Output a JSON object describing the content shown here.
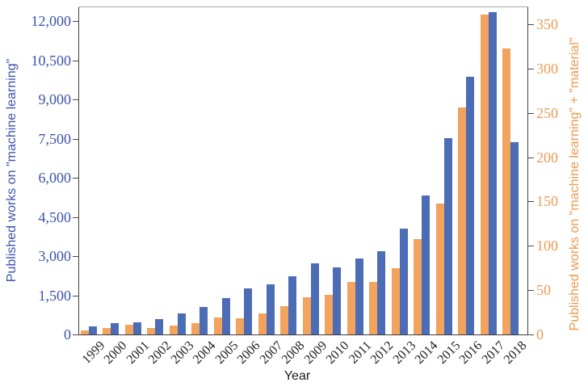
{
  "chart_data": {
    "type": "bar",
    "title": "",
    "xlabel": "Year",
    "grid": false,
    "legend_position": "none",
    "categories": [
      "1999",
      "2000",
      "2001",
      "2002",
      "2003",
      "2004",
      "2005",
      "2006",
      "2007",
      "2008",
      "2009",
      "2010",
      "2011",
      "2012",
      "2013",
      "2014",
      "2015",
      "2016",
      "2017",
      "2018"
    ],
    "series": [
      {
        "name": "Published works on \"machine learning\" + \"material\"",
        "axis": "right",
        "bar_position": "left-in-pair",
        "color": "#f2a35e",
        "values": [
          5,
          7,
          11,
          7,
          10,
          13,
          19,
          18,
          24,
          32,
          42,
          45,
          59,
          59,
          75,
          108,
          148,
          256,
          361,
          323
        ]
      },
      {
        "name": "Published works on \"machine learning\"",
        "axis": "left",
        "bar_position": "right-in-pair",
        "color": "#4c6cb5",
        "values": [
          320,
          440,
          470,
          580,
          800,
          1060,
          1400,
          1750,
          1910,
          2230,
          2720,
          2580,
          2900,
          3190,
          4050,
          5320,
          7530,
          9870,
          12340,
          7350
        ]
      }
    ],
    "left_axis": {
      "label": "Published works on \"machine learning\"",
      "color": "#3b54ae",
      "ticks": [
        0,
        1500,
        3000,
        4500,
        6000,
        7500,
        9000,
        10500,
        12000
      ],
      "tick_labels": [
        "0",
        "1,500",
        "3,000",
        "4,500",
        "6,000",
        "7,500",
        "9,000",
        "10,500",
        "12,000"
      ],
      "range": [
        0,
        12560
      ]
    },
    "right_axis": {
      "label": "Published works on \"machine learning\" + \"material\"",
      "color": "#ec9a52",
      "ticks": [
        0,
        50,
        100,
        150,
        200,
        250,
        300,
        350
      ],
      "tick_labels": [
        "0",
        "50",
        "100",
        "150",
        "200",
        "250",
        "300",
        "350"
      ],
      "range": [
        0,
        370
      ]
    }
  }
}
